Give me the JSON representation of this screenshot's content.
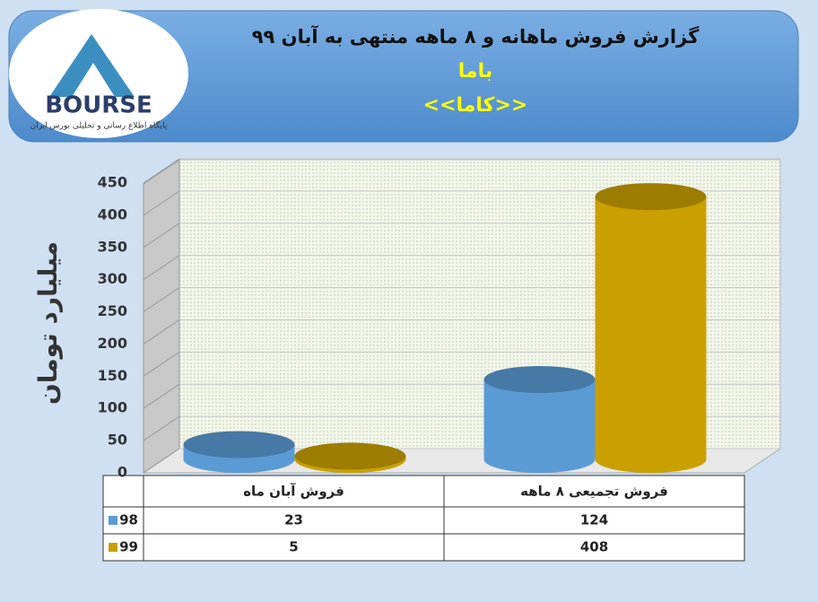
{
  "logo": {
    "text": "BOURSE",
    "tagline": "پایگاه اطلاع رسانی و تحلیلی بورس ایران"
  },
  "chart_data": {
    "type": "bar",
    "title": "گزارش فروش ماهانه و ۸ ماهه منتهی به آبان ۹۹",
    "subtitle": "باما",
    "subtitle2": "<<کاما>>",
    "y_label": "میلیارد تومان",
    "categories": [
      "فروش آبان  ماه",
      "فروش تجمیعی ۸ ماهه"
    ],
    "series": [
      {
        "name": "98",
        "color": "#5b9bd5",
        "values": [
          23,
          124
        ]
      },
      {
        "name": "99",
        "color": "#c9a000",
        "values": [
          5,
          408
        ]
      }
    ],
    "ylim": [
      0,
      450
    ],
    "yticks": [
      0,
      50,
      100,
      150,
      200,
      250,
      300,
      350,
      400,
      450
    ],
    "grid": true
  }
}
